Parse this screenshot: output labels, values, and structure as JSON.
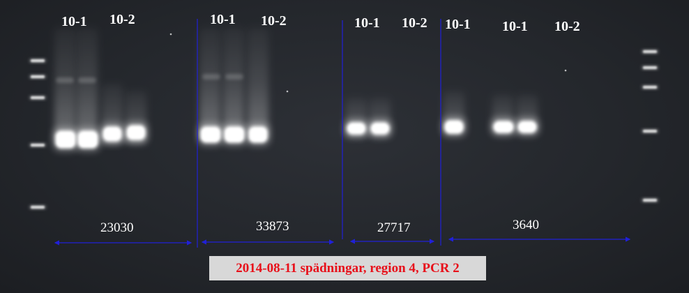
{
  "lane_labels": [
    {
      "id": "g1-10-1",
      "text": "10-1"
    },
    {
      "id": "g1-10-2",
      "text": "10-2"
    },
    {
      "id": "g2-10-1",
      "text": "10-1"
    },
    {
      "id": "g2-10-2",
      "text": "10-2"
    },
    {
      "id": "g3-10-1",
      "text": "10-1"
    },
    {
      "id": "g3-10-2",
      "text": "10-2"
    },
    {
      "id": "g4-10-1a",
      "text": "10-1"
    },
    {
      "id": "g4-10-1b",
      "text": "10-1"
    },
    {
      "id": "g4-10-2",
      "text": "10-2"
    }
  ],
  "sample_ids": [
    "23030",
    "33873",
    "27717",
    "3640"
  ],
  "caption": "2014-08-11 spädningar, region 4, PCR 2",
  "colors": {
    "gel_background": "#26292e",
    "band": "#ffffff",
    "divider_line": "#2020d8",
    "caption_text": "#e8101a",
    "caption_background": "#d8d8d8"
  }
}
